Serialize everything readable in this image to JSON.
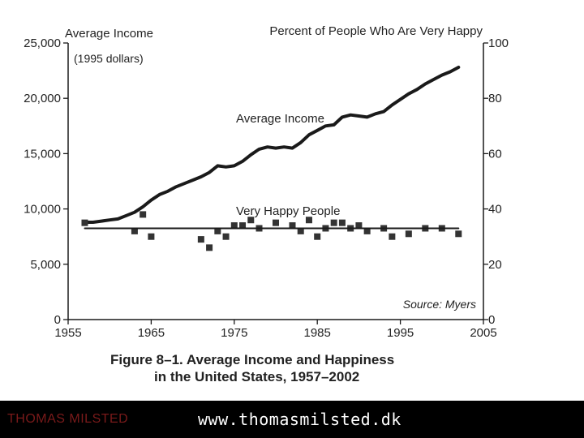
{
  "colors": {
    "ink": "#1a1a1a",
    "footer_bg": "#000000",
    "footer_name": "#7a1a1a",
    "footer_url": "#ffffff"
  },
  "footer": {
    "name": "THOMAS MILSTED",
    "url": "www.thomasmilsted.dk"
  },
  "chart_data": {
    "type": "line",
    "left_axis_title": "Average Income",
    "left_axis_subtitle": "(1995 dollars)",
    "right_axis_title": "Percent of People Who Are Very Happy",
    "source": "Source: Myers",
    "caption_line1": "Figure 8–1.  Average Income and Happiness",
    "caption_line2": "in the United States, 1957–2002",
    "x_range": [
      1955,
      2005
    ],
    "x_ticks": [
      "1955",
      "1965",
      "1975",
      "1985",
      "1995",
      "2005"
    ],
    "left_range": [
      0,
      25000
    ],
    "left_ticks": [
      "0",
      "5,000",
      "10,000",
      "15,000",
      "20,000",
      "25,000"
    ],
    "right_range": [
      0,
      100
    ],
    "right_ticks": [
      "0",
      "20",
      "40",
      "60",
      "80",
      "100"
    ],
    "series": [
      {
        "name": "Average Income",
        "axis": "left",
        "style": "line",
        "x": [
          1957,
          1958,
          1959,
          1960,
          1961,
          1962,
          1963,
          1964,
          1965,
          1966,
          1967,
          1968,
          1969,
          1970,
          1971,
          1972,
          1973,
          1974,
          1975,
          1976,
          1977,
          1978,
          1979,
          1980,
          1981,
          1982,
          1983,
          1984,
          1985,
          1986,
          1987,
          1988,
          1989,
          1990,
          1991,
          1992,
          1993,
          1994,
          1995,
          1996,
          1997,
          1998,
          1999,
          2000,
          2001,
          2002
        ],
        "values": [
          8800,
          8800,
          8900,
          9000,
          9100,
          9400,
          9700,
          10200,
          10800,
          11300,
          11600,
          12000,
          12300,
          12600,
          12900,
          13300,
          13900,
          13800,
          13900,
          14300,
          14900,
          15400,
          15600,
          15500,
          15600,
          15500,
          16000,
          16700,
          17100,
          17500,
          17600,
          18300,
          18500,
          18400,
          18300,
          18600,
          18800,
          19400,
          19900,
          20400,
          20800,
          21300,
          21700,
          22100,
          22400,
          22800
        ]
      },
      {
        "name": "Very Happy People",
        "axis": "right",
        "style": "markers",
        "x": [
          1957,
          1963,
          1964,
          1965,
          1971,
          1972,
          1973,
          1974,
          1975,
          1976,
          1977,
          1978,
          1980,
          1982,
          1983,
          1984,
          1985,
          1986,
          1987,
          1988,
          1989,
          1990,
          1991,
          1993,
          1994,
          1996,
          1998,
          2000,
          2002
        ],
        "values": [
          35,
          32,
          38,
          30,
          29,
          26,
          32,
          30,
          34,
          34,
          36,
          33,
          35,
          34,
          32,
          36,
          30,
          33,
          35,
          35,
          33,
          34,
          32,
          33,
          30,
          31,
          33,
          33,
          31
        ]
      },
      {
        "axis": "right",
        "style": "trend",
        "x": [
          1957,
          2002
        ],
        "values": [
          33,
          33
        ]
      }
    ]
  }
}
